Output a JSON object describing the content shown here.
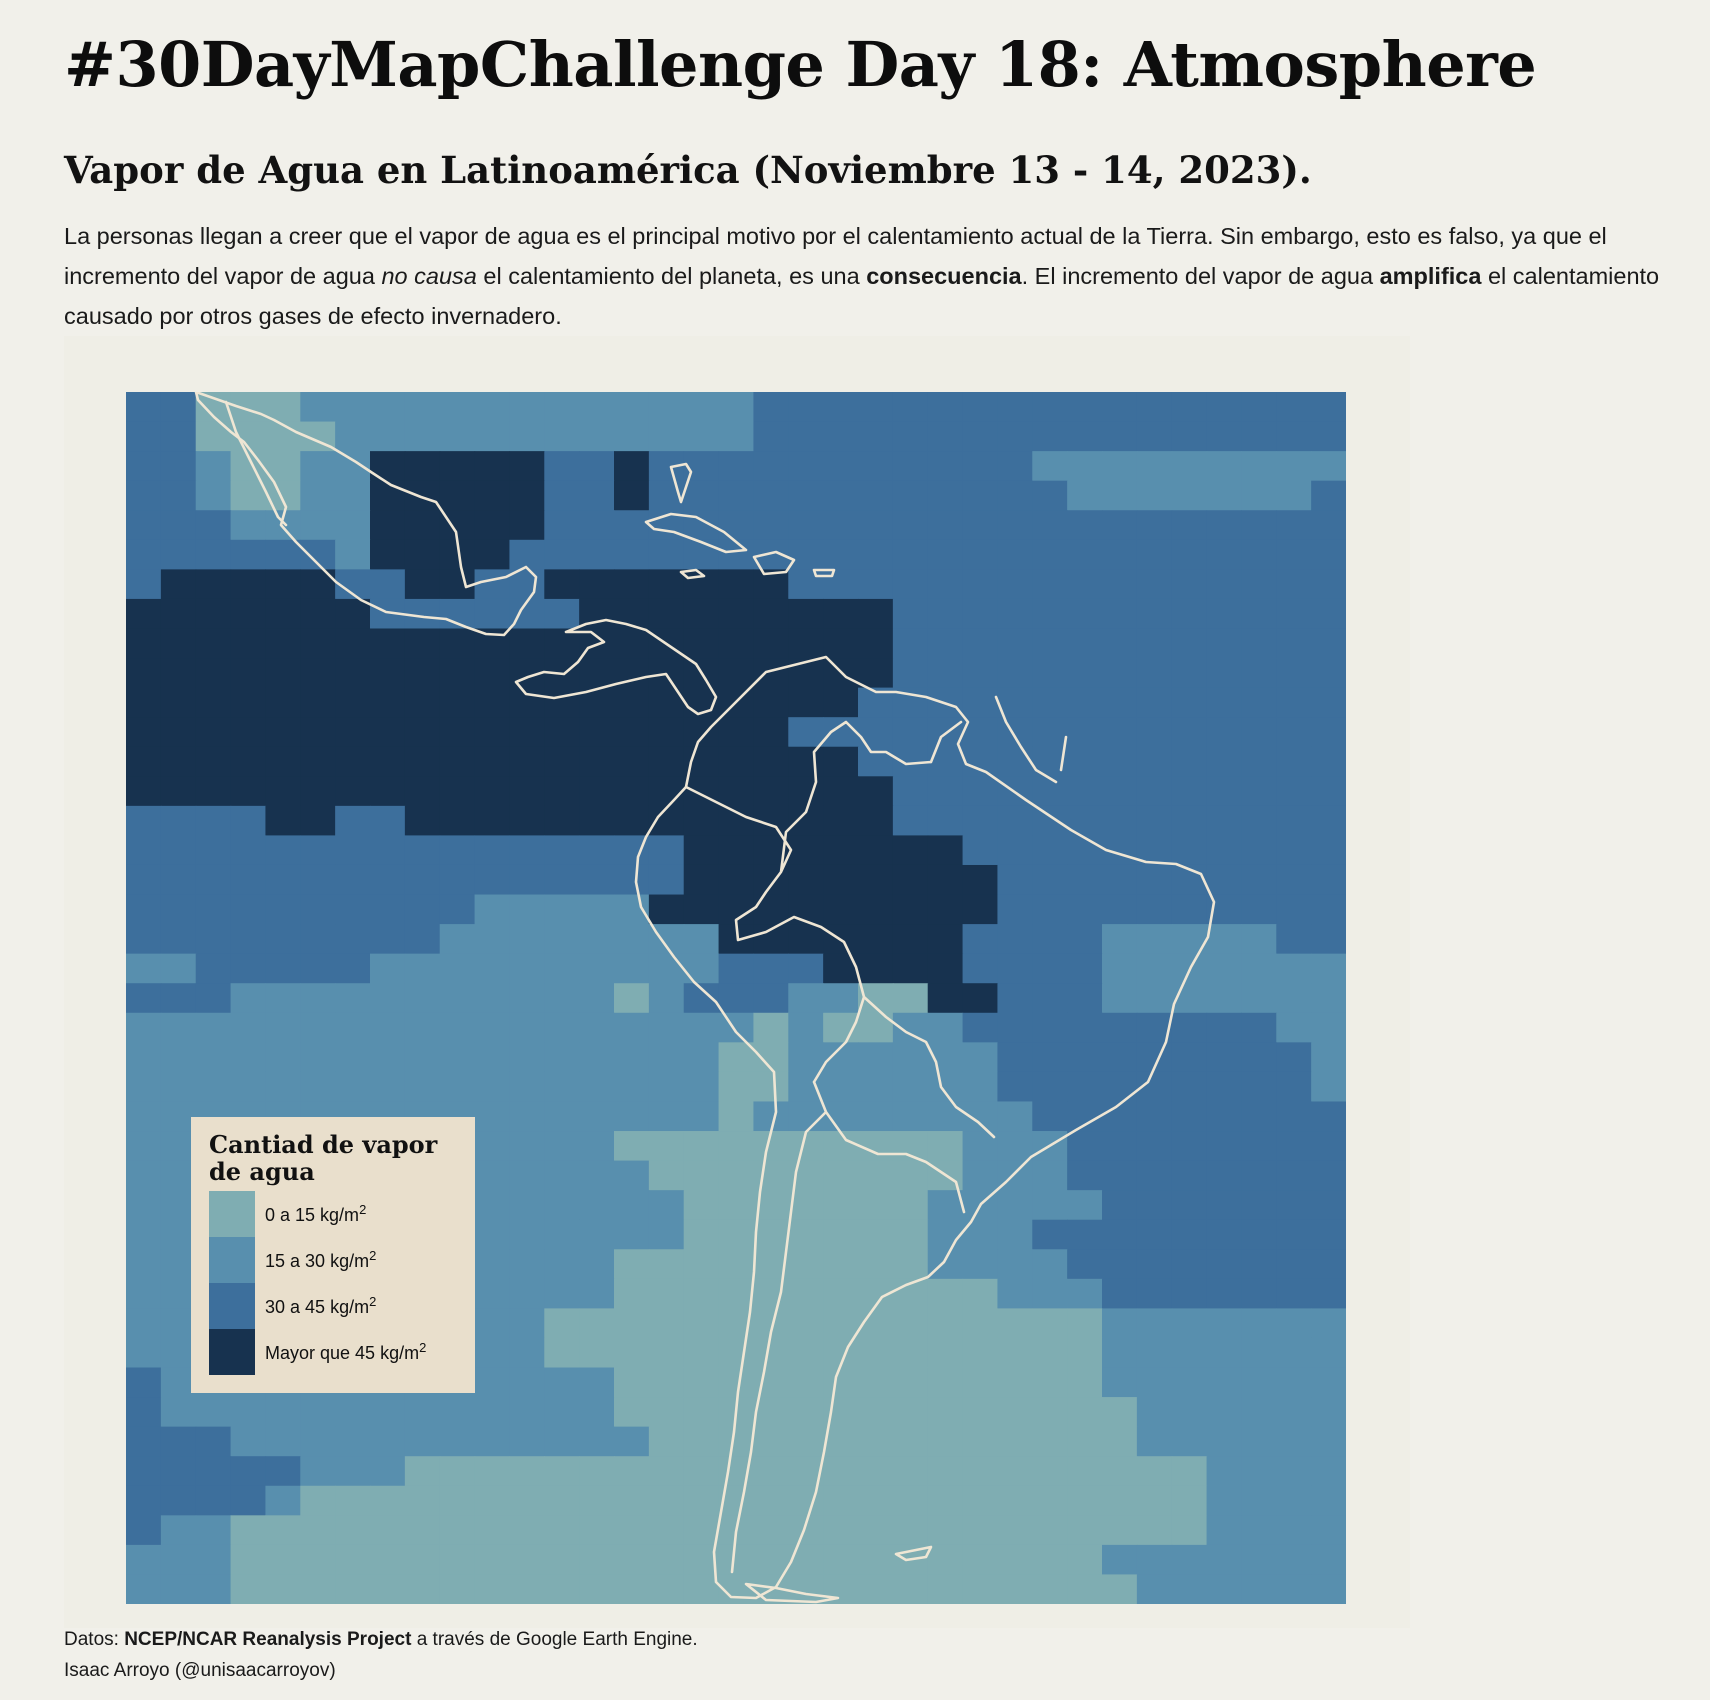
{
  "header": {
    "title": "#30DayMapChallenge Day 18: Atmosphere",
    "subtitle": "Vapor de Agua en Latinoamérica (Noviembre 13 - 14, 2023)."
  },
  "description": {
    "part1": "La personas llegan a creer que el vapor de agua es el principal motivo por el calentamiento actual de la Tierra. Sin embargo, esto es falso, ya que el incremento del vapor de agua ",
    "part2_italic": "no causa",
    "part3": " el calentamiento del planeta, es una ",
    "part4_bold": "consecuencia",
    "part5": ". El incremento del vapor de agua ",
    "part6_bold": "amplifica",
    "part7": " el calentamiento causado por otros gases de efecto invernadero."
  },
  "legend": {
    "title": "Cantiad de vapor de agua",
    "unit_base": "kg/m",
    "unit_exp": "2",
    "items": [
      {
        "prefix": "0 a 15 ",
        "color": "#7fadb2"
      },
      {
        "prefix": "15 a 30 ",
        "color": "#588fae"
      },
      {
        "prefix": "30 a 45 ",
        "color": "#3d6f9c"
      },
      {
        "prefix": "Mayor que 45 ",
        "color": "#17324f"
      }
    ]
  },
  "colors": {
    "class_1": "#7fadb2",
    "class_2": "#588fae",
    "class_3": "#3d6f9c",
    "class_4": "#17324f",
    "coastline": "#efe6d4"
  },
  "footer": {
    "data_prefix": "Datos: ",
    "data_source": "NCEP/NCAR Reanalysis Project",
    "data_suffix": " a través de Google Earth Engine.",
    "author": "Isaac Arroyo (@unisaacarroyov)"
  }
}
